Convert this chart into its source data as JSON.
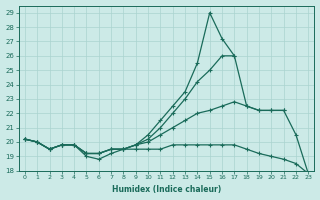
{
  "xlabel": "Humidex (Indice chaleur)",
  "bg_color": "#cceae7",
  "grid_color": "#aad4d0",
  "line_color": "#1a6b5a",
  "xlim": [
    -0.5,
    23.5
  ],
  "ylim": [
    18,
    29.5
  ],
  "xticks": [
    0,
    1,
    2,
    3,
    4,
    5,
    6,
    7,
    8,
    9,
    10,
    11,
    12,
    13,
    14,
    15,
    16,
    17,
    18,
    19,
    20,
    21,
    22,
    23
  ],
  "yticks": [
    18,
    19,
    20,
    21,
    22,
    23,
    24,
    25,
    26,
    27,
    28,
    29
  ],
  "lines": [
    {
      "x": [
        0,
        1,
        2,
        3,
        4,
        5,
        6,
        7,
        8,
        9,
        10,
        11,
        12,
        13,
        14,
        15,
        16,
        17,
        18,
        19,
        20,
        21,
        22,
        23
      ],
      "y": [
        20.2,
        20.0,
        19.5,
        19.8,
        19.8,
        19.2,
        19.2,
        19.5,
        19.5,
        19.8,
        20.5,
        21.5,
        22.5,
        23.5,
        25.5,
        29.0,
        27.2,
        26.0,
        null,
        null,
        null,
        null,
        null,
        null
      ]
    },
    {
      "x": [
        0,
        1,
        2,
        3,
        4,
        5,
        6,
        7,
        8,
        9,
        10,
        11,
        12,
        13,
        14,
        15,
        16,
        17,
        18,
        19,
        20,
        21,
        22,
        23
      ],
      "y": [
        20.2,
        20.0,
        19.5,
        19.8,
        19.8,
        19.2,
        19.2,
        19.5,
        19.5,
        19.8,
        20.2,
        21.0,
        22.0,
        23.0,
        24.2,
        25.0,
        26.0,
        26.0,
        22.5,
        22.2,
        22.2,
        22.2,
        null,
        null
      ]
    },
    {
      "x": [
        0,
        1,
        2,
        3,
        4,
        5,
        6,
        7,
        8,
        9,
        10,
        11,
        12,
        13,
        14,
        15,
        16,
        17,
        18,
        19,
        20,
        21,
        22,
        23
      ],
      "y": [
        20.2,
        20.0,
        19.5,
        19.8,
        19.8,
        19.2,
        19.2,
        19.5,
        19.5,
        19.8,
        20.0,
        20.5,
        21.0,
        21.5,
        22.0,
        22.2,
        22.5,
        22.8,
        22.5,
        22.2,
        22.2,
        22.2,
        20.5,
        17.8
      ]
    },
    {
      "x": [
        0,
        1,
        2,
        3,
        4,
        5,
        6,
        7,
        8,
        9,
        10,
        11,
        12,
        13,
        14,
        15,
        16,
        17,
        18,
        19,
        20,
        21,
        22,
        23
      ],
      "y": [
        20.2,
        20.0,
        19.5,
        19.8,
        19.8,
        19.0,
        18.8,
        19.2,
        19.5,
        19.5,
        19.5,
        19.5,
        19.8,
        19.8,
        19.8,
        19.8,
        19.8,
        19.8,
        19.5,
        19.2,
        19.0,
        18.8,
        18.5,
        17.8
      ]
    }
  ]
}
